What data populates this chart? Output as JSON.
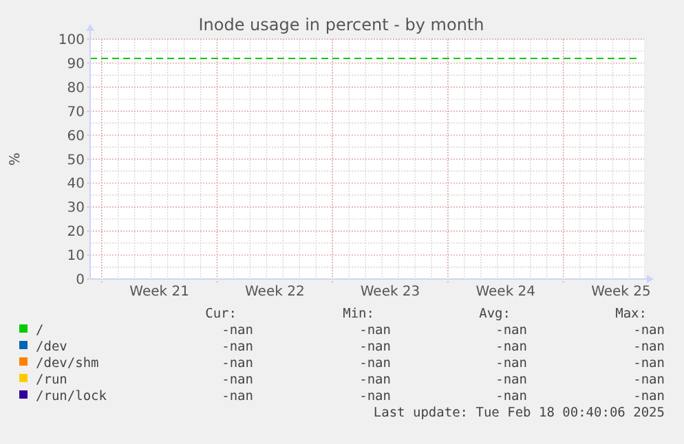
{
  "chart_data": {
    "type": "line",
    "title": "Inode usage in percent - by month",
    "ylabel": "%",
    "categories": [
      "Week 21",
      "Week 22",
      "Week 23",
      "Week 24",
      "Week 25"
    ],
    "ylim": [
      0,
      100
    ],
    "yticks": [
      0,
      10,
      20,
      30,
      40,
      50,
      60,
      70,
      80,
      90,
      100
    ],
    "grid": true,
    "legend": "bottom",
    "ref_lines": [
      {
        "axis": "y",
        "value": 92,
        "color": "#00cc00",
        "line_style": "dashed"
      }
    ],
    "annotations": [
      "Cur:",
      "Min:",
      "Avg:",
      "Max:",
      "-nan",
      "-nan",
      "-nan",
      "-nan",
      "-nan",
      "-nan",
      "-nan",
      "-nan",
      "-nan",
      "-nan",
      "-nan",
      "-nan",
      "-nan",
      "-nan",
      "-nan",
      "-nan",
      "-nan",
      "-nan",
      "-nan",
      "-nan",
      "Last update: Tue Feb 18 00:40:06 2025"
    ],
    "series": [
      {
        "name": "/",
        "color": "#00cc00",
        "values": [
          null,
          null,
          null,
          null,
          null
        ]
      },
      {
        "name": "/dev",
        "color": "#0066b3",
        "values": [
          null,
          null,
          null,
          null,
          null
        ]
      },
      {
        "name": "/dev/shm",
        "color": "#ff8000",
        "values": [
          null,
          null,
          null,
          null,
          null
        ]
      },
      {
        "name": "/run",
        "color": "#ffcc00",
        "values": [
          null,
          null,
          null,
          null,
          null
        ]
      },
      {
        "name": "/run/lock",
        "color": "#330099",
        "values": [
          null,
          null,
          null,
          null,
          null
        ]
      }
    ]
  }
}
